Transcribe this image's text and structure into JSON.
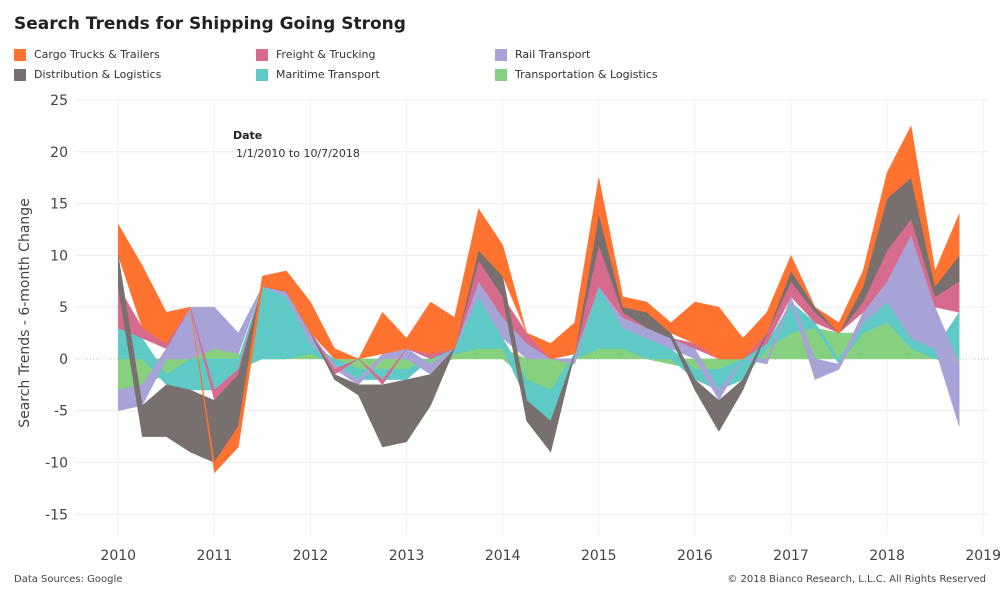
{
  "title": "Search Trends for Shipping Going Strong",
  "legend": [
    {
      "label": "Cargo Trucks & Trailers",
      "color": "#ff7230"
    },
    {
      "label": "Freight & Trucking",
      "color": "#d66b8e"
    },
    {
      "label": "Rail Transport",
      "color": "#a8a3d6"
    },
    {
      "label": "Distribution & Logistics",
      "color": "#78706e"
    },
    {
      "label": "Maritime Transport",
      "color": "#5fcac5"
    },
    {
      "label": "Transportation & Logistics",
      "color": "#87d07f"
    }
  ],
  "annotation": {
    "title": "Date",
    "value": "1/1/2010 to 10/7/2018"
  },
  "footer": {
    "source": "Data Sources: Google",
    "copyright": "© 2018 Bianco Research, L.L.C. All Rights Reserved"
  },
  "chart_data": {
    "type": "area",
    "stacked": true,
    "stack_order": [
      "Transportation & Logistics",
      "Maritime Transport",
      "Rail Transport",
      "Freight & Trucking",
      "Distribution & Logistics",
      "Cargo Trucks & Trailers"
    ],
    "x": [
      2010.0,
      2010.25,
      2010.5,
      2010.75,
      2011.0,
      2011.25,
      2011.5,
      2011.75,
      2012.0,
      2012.25,
      2012.5,
      2012.75,
      2013.0,
      2013.25,
      2013.5,
      2013.75,
      2014.0,
      2014.25,
      2014.5,
      2014.75,
      2015.0,
      2015.25,
      2015.5,
      2015.75,
      2016.0,
      2016.25,
      2016.5,
      2016.75,
      2017.0,
      2017.25,
      2017.5,
      2017.75,
      2018.0,
      2018.25,
      2018.5,
      2018.75
    ],
    "series": [
      {
        "name": "Transportation & Logistics",
        "color": "#87d07f",
        "values": [
          -3,
          -2.5,
          -1.5,
          0,
          1,
          0.5,
          0,
          0,
          0.5,
          0,
          -1,
          -1,
          -1,
          -0.5,
          0.5,
          1,
          1,
          -2,
          -3,
          0,
          1,
          1,
          0,
          -0.5,
          -1,
          -1,
          0,
          1,
          2.5,
          3,
          2.5,
          2.5,
          3.5,
          1,
          0,
          -0.5
        ]
      },
      {
        "name": "Maritime Transport",
        "color": "#5fcac5",
        "values": [
          3,
          2,
          -1,
          -3,
          -3,
          -1,
          7,
          6,
          1,
          -0.5,
          -1,
          -1,
          -1,
          0,
          0.5,
          5,
          1,
          -2,
          -3,
          0.5,
          6,
          2,
          2,
          1,
          -1,
          -2,
          -2,
          0.5,
          3,
          0.5,
          -0.5,
          1,
          2,
          1,
          1,
          4.5
        ]
      },
      {
        "name": "Rail Transport",
        "color": "#a8a3d6",
        "values": [
          -2,
          -2,
          1,
          5,
          4,
          2,
          0,
          0.5,
          1,
          -0.5,
          -0.5,
          0.5,
          1,
          -1,
          0,
          1.5,
          2,
          1.5,
          0,
          -0.5,
          0,
          1,
          1,
          1,
          1,
          -1,
          0,
          -0.5,
          0.5,
          -2,
          -0.5,
          1,
          2,
          10,
          4,
          -6
        ]
      },
      {
        "name": "Freight & Trucking",
        "color": "#d66b8e",
        "values": [
          4,
          1,
          0.5,
          0,
          -1,
          -0.5,
          0,
          0,
          0,
          -0.5,
          0,
          -0.5,
          0,
          0.5,
          0,
          2,
          2,
          1,
          0,
          0,
          4,
          0.5,
          0,
          0,
          0.5,
          0,
          0,
          1,
          1.5,
          1,
          0,
          1,
          3,
          1.5,
          1,
          3
        ]
      },
      {
        "name": "Distribution & Logistics",
        "color": "#78706e",
        "values": [
          3,
          -3,
          -5,
          -6,
          -6,
          -5,
          0,
          0,
          0,
          -0.5,
          -1,
          -6,
          -6,
          -3,
          0,
          1,
          2,
          -2,
          -3,
          0,
          3,
          0.5,
          1.5,
          0.5,
          -1,
          -3,
          -1,
          0,
          1,
          0.5,
          0,
          1.5,
          5,
          4,
          1,
          2.5
        ]
      },
      {
        "name": "Cargo Trucks & Trailers",
        "color": "#ff7230",
        "values": [
          3,
          6,
          3,
          0,
          -1,
          -2,
          1,
          2,
          3,
          1,
          0,
          4,
          1,
          5,
          3,
          4,
          3,
          0,
          1.5,
          3,
          3.5,
          1,
          1,
          1,
          4,
          5,
          2,
          2,
          1.5,
          0,
          1,
          1.5,
          2.5,
          5,
          1.5,
          4
        ]
      }
    ],
    "title": "Search Trends for Shipping Going Strong",
    "xlabel": "",
    "ylabel": "Search Trends - 6-month Change",
    "xlim": [
      2009.55,
      2019.05
    ],
    "ylim": [
      -17,
      25
    ],
    "yticks": [
      -15,
      -10,
      -5,
      0,
      5,
      10,
      15,
      20,
      25
    ],
    "xticks": [
      2010,
      2011,
      2012,
      2013,
      2014,
      2015,
      2016,
      2017,
      2018,
      2019
    ],
    "grid": true
  }
}
